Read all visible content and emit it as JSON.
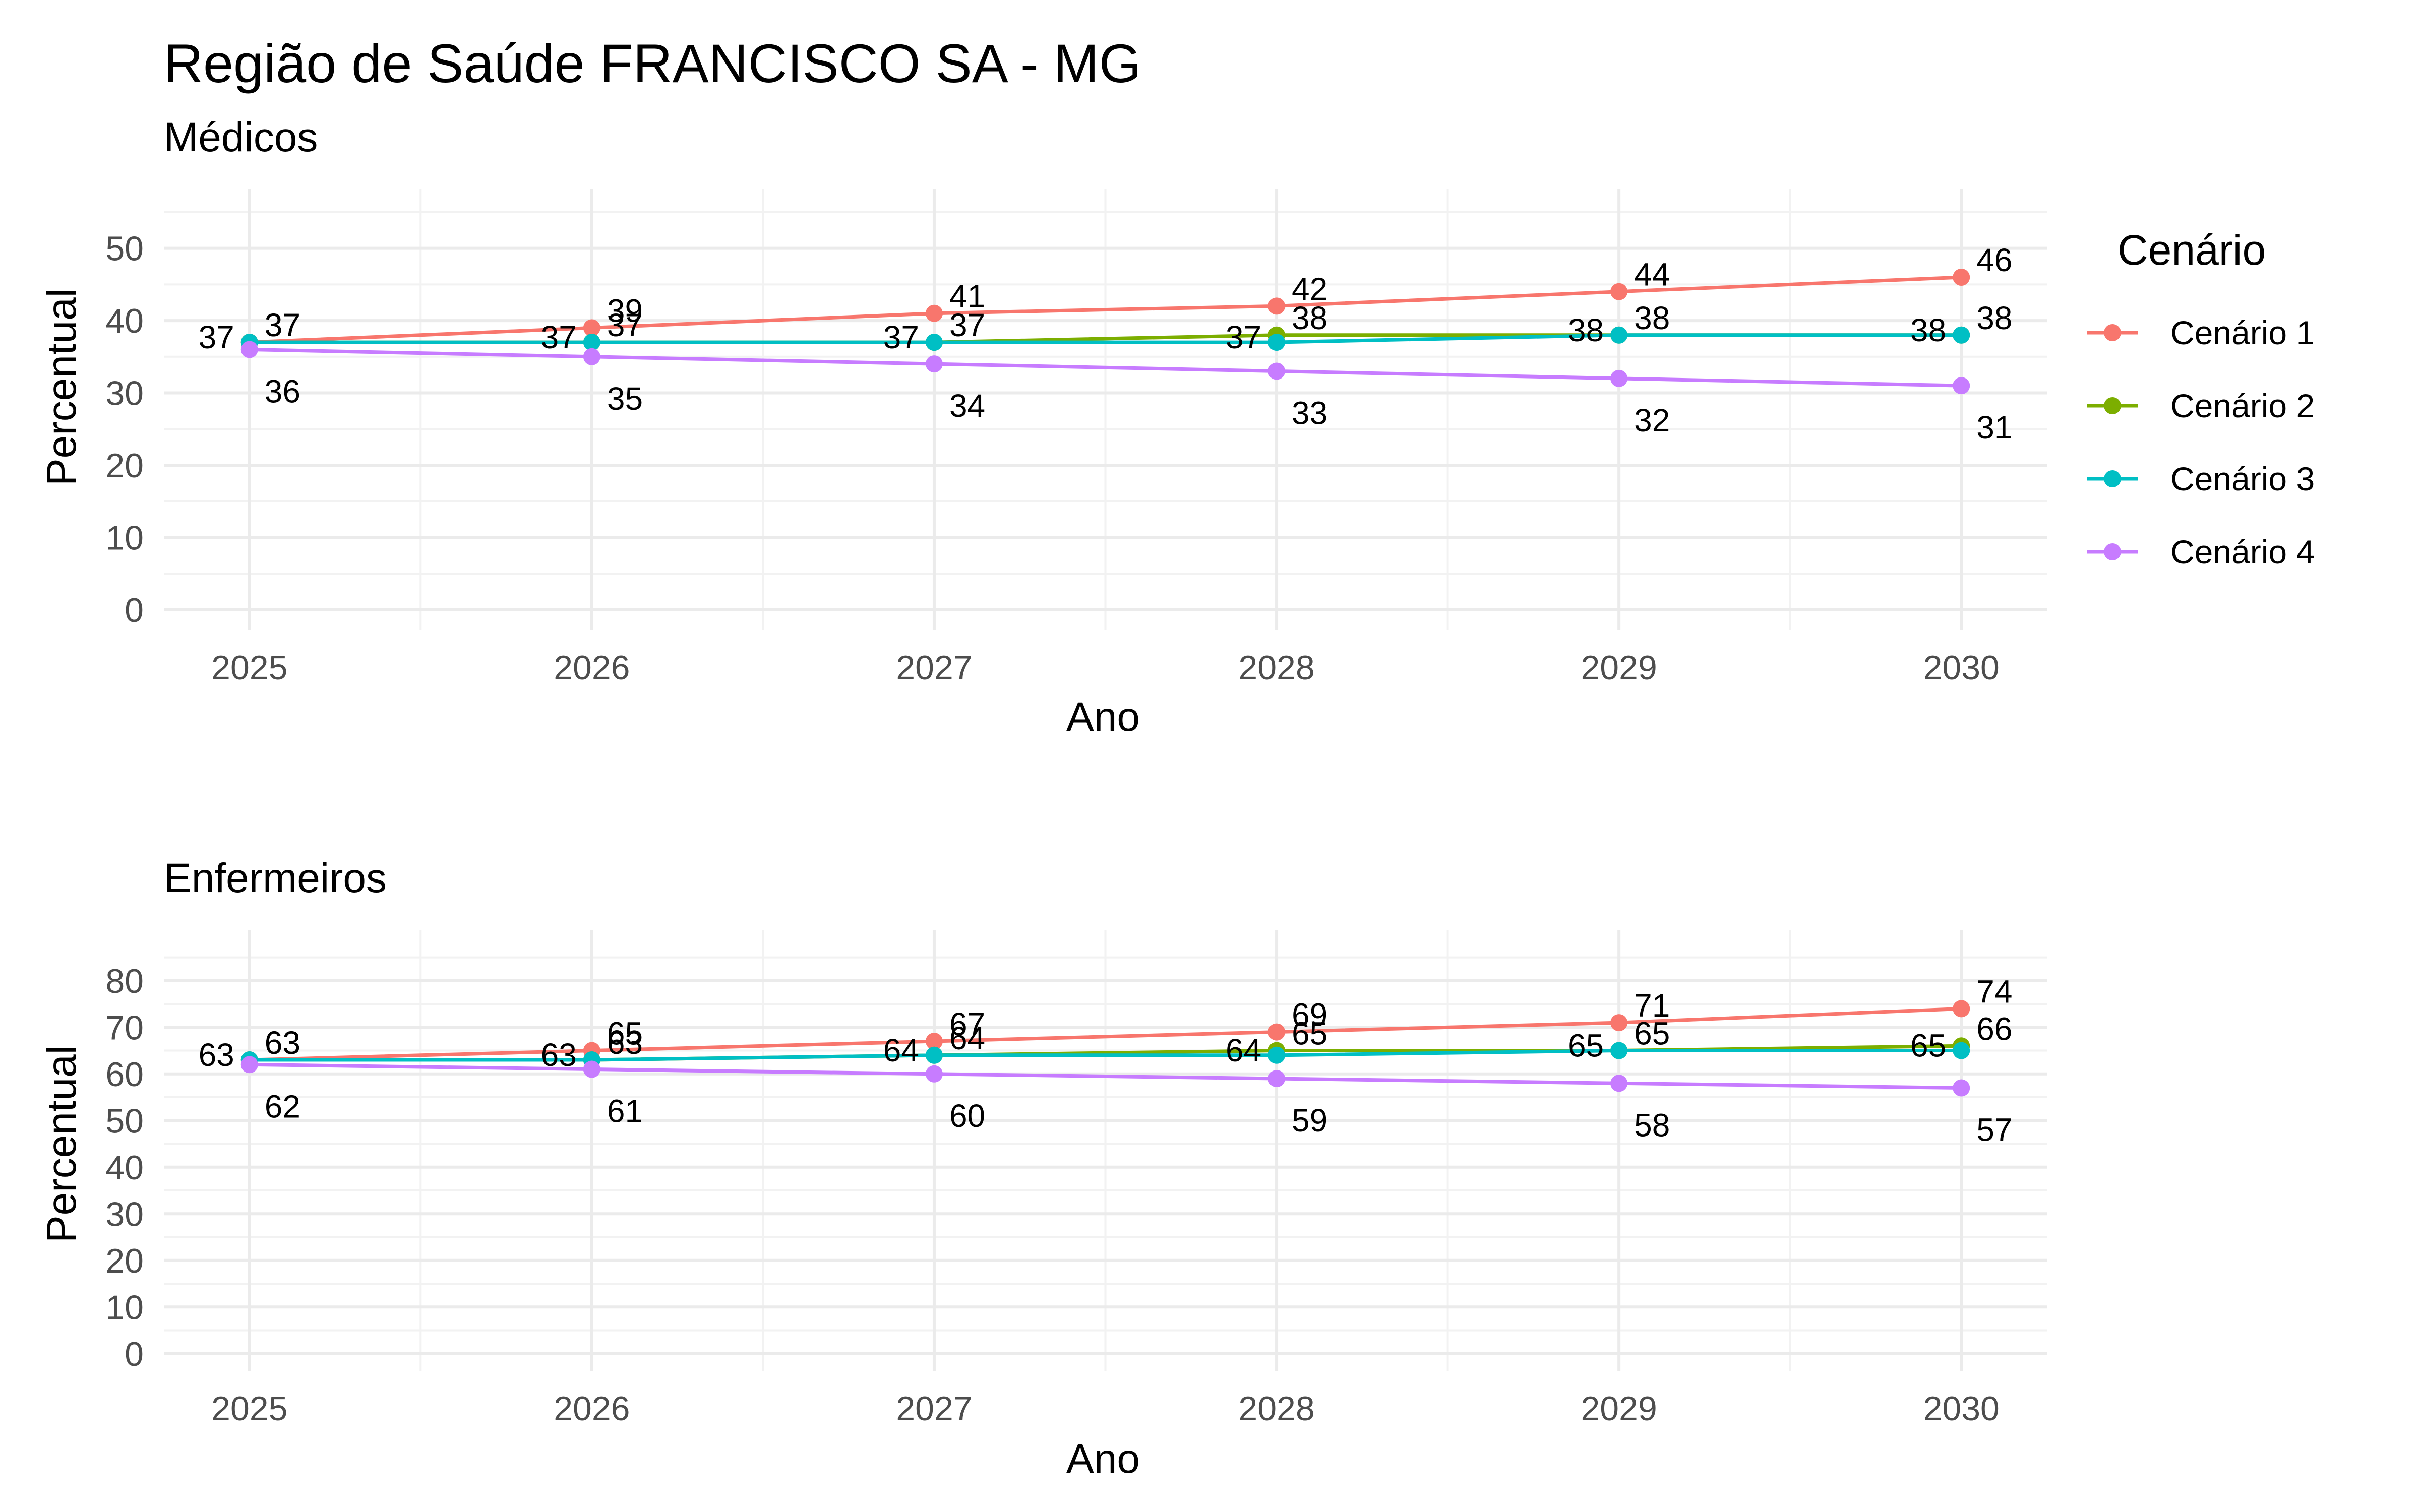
{
  "title": "Região de Saúde FRANCISCO SA - MG",
  "legend": {
    "title": "Cenário",
    "items": [
      {
        "label": "Cenário 1",
        "color": "#F8766D"
      },
      {
        "label": "Cenário 2",
        "color": "#7CAE00"
      },
      {
        "label": "Cenário 3",
        "color": "#00BFC4"
      },
      {
        "label": "Cenário 4",
        "color": "#C77CFF"
      }
    ]
  },
  "chart_data": [
    {
      "type": "line",
      "subtitle": "Médicos",
      "xlabel": "Ano",
      "ylabel": "Percentual",
      "x": [
        2025,
        2026,
        2027,
        2028,
        2029,
        2030
      ],
      "x_ticks": [
        "2025",
        "2026",
        "2027",
        "2028",
        "2029",
        "2030"
      ],
      "y_ticks": [
        0,
        10,
        20,
        30,
        40,
        50
      ],
      "xlim": [
        2024.75,
        2030.25
      ],
      "ylim": [
        -2.8,
        58.2
      ],
      "grid": true,
      "legend_position": "right",
      "series": [
        {
          "name": "Cenário 1",
          "values": [
            37,
            39,
            41,
            42,
            44,
            46
          ]
        },
        {
          "name": "Cenário 2",
          "values": [
            37,
            37,
            37,
            38,
            38,
            38
          ]
        },
        {
          "name": "Cenário 3",
          "values": [
            37,
            37,
            37,
            37,
            38,
            38
          ]
        },
        {
          "name": "Cenário 4",
          "values": [
            36,
            35,
            34,
            33,
            32,
            31
          ]
        }
      ],
      "point_labels": [
        [
          "37",
          "39",
          "41",
          "42",
          "44",
          "46"
        ],
        [
          "37",
          "37",
          "37",
          "38",
          "38",
          "38"
        ],
        [
          "37",
          "37",
          "37",
          "37",
          "38",
          "38"
        ],
        [
          "36",
          "35",
          "34",
          "33",
          "32",
          "31"
        ]
      ]
    },
    {
      "type": "line",
      "subtitle": "Enfermeiros",
      "xlabel": "Ano",
      "ylabel": "Percentual",
      "x": [
        2025,
        2026,
        2027,
        2028,
        2029,
        2030
      ],
      "x_ticks": [
        "2025",
        "2026",
        "2027",
        "2028",
        "2029",
        "2030"
      ],
      "y_ticks": [
        0,
        10,
        20,
        30,
        40,
        50,
        60,
        70,
        80
      ],
      "xlim": [
        2024.75,
        2030.25
      ],
      "ylim": [
        -3.7,
        90.9
      ],
      "grid": true,
      "legend_position": "right",
      "series": [
        {
          "name": "Cenário 1",
          "values": [
            63,
            65,
            67,
            69,
            71,
            74
          ]
        },
        {
          "name": "Cenário 2",
          "values": [
            63,
            63,
            64,
            65,
            65,
            66
          ]
        },
        {
          "name": "Cenário 3",
          "values": [
            63,
            63,
            64,
            64,
            65,
            65
          ]
        },
        {
          "name": "Cenário 4",
          "values": [
            62,
            61,
            60,
            59,
            58,
            57
          ]
        }
      ],
      "point_labels": [
        [
          "63",
          "65",
          "67",
          "69",
          "71",
          "74"
        ],
        [
          "63",
          "63",
          "64",
          "65",
          "65",
          "66"
        ],
        [
          "63",
          "63",
          "64",
          "64",
          "65",
          "65"
        ],
        [
          "62",
          "61",
          "60",
          "59",
          "58",
          "57"
        ]
      ]
    }
  ]
}
